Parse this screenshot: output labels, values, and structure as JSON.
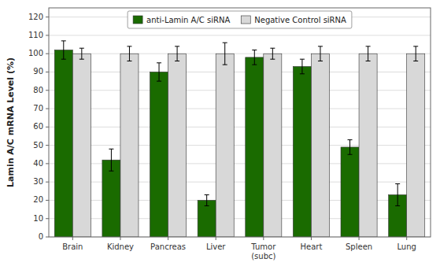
{
  "chart_data": {
    "type": "bar",
    "categories": [
      "Brain",
      "Kidney",
      "Pancreas",
      "Liver",
      "Tumor\n(subc)",
      "Heart",
      "Spleen",
      "Lung"
    ],
    "series": [
      {
        "name": "anti-Lamin A/C siRNA",
        "color": "#1a6b00",
        "values": [
          102,
          42,
          90,
          20,
          98,
          93,
          49,
          23
        ],
        "errors": [
          5,
          6,
          5,
          3,
          4,
          4,
          4,
          6
        ]
      },
      {
        "name": "Negative Control siRNA",
        "color": "#d8d8d8",
        "values": [
          100,
          100,
          100,
          100,
          100,
          100,
          100,
          100
        ],
        "errors": [
          3,
          4,
          4,
          6,
          3,
          4,
          4,
          4
        ]
      }
    ],
    "y_label": "Lamin A/C mRNA Level (%)",
    "ylim": [
      0,
      125
    ],
    "yticks": [
      0,
      10,
      20,
      30,
      40,
      50,
      60,
      70,
      80,
      90,
      100,
      110,
      120
    ],
    "grid": true,
    "legend": "top"
  }
}
